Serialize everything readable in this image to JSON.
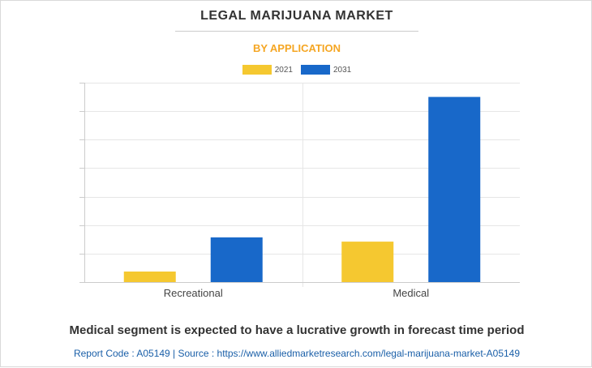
{
  "chart_data": {
    "type": "bar",
    "title": "LEGAL MARIJUANA MARKET",
    "subtitle": "BY APPLICATION",
    "categories": [
      "Recreational",
      "Medical"
    ],
    "series": [
      {
        "name": "2021",
        "values": [
          3.7,
          14.2
        ],
        "color": "#f5c830"
      },
      {
        "name": "2031",
        "values": [
          15.7,
          65.0
        ],
        "color": "#1868c9"
      }
    ],
    "ylim": [
      0,
      70
    ],
    "y_tick_step": 10,
    "y_tick_labels_shown": false,
    "grid": true,
    "legend_position": "top-center"
  },
  "footer": {
    "headline": "Medical segment is expected to have a lucrative growth in forecast time period",
    "source": "Report Code : A05149  |  Source : https://www.alliedmarketresearch.com/legal-marijuana-market-A05149"
  }
}
